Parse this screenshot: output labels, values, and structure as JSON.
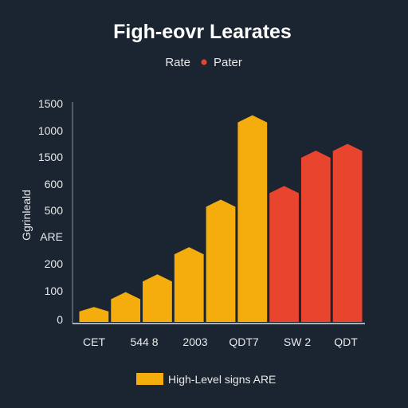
{
  "chart_data": {
    "type": "bar",
    "title": "Figh-eovr Learates",
    "ylabel": "Ggrinleald",
    "xlabel": "",
    "legend": {
      "top": [
        {
          "label": "Rate",
          "color": ""
        },
        {
          "label": "Pater",
          "color": "#e8442e"
        }
      ],
      "bottom": {
        "label": "High-Level signs ARE",
        "color": "#f5ad0e"
      }
    },
    "y_tick_labels": [
      "0",
      "100",
      "200",
      "ARE",
      "500",
      "600",
      "1500",
      "1000",
      "1500"
    ],
    "x_tick_labels": [
      "CET",
      "544 8",
      "2003",
      "QDT7",
      "SW 2",
      "QDT"
    ],
    "ylim": [
      0,
      8
    ],
    "bars": [
      {
        "value": 0.55,
        "series": "yellow"
      },
      {
        "value": 1.1,
        "series": "yellow"
      },
      {
        "value": 1.75,
        "series": "yellow"
      },
      {
        "value": 2.75,
        "series": "yellow"
      },
      {
        "value": 4.5,
        "series": "yellow"
      },
      {
        "value": 7.6,
        "series": "yellow"
      },
      {
        "value": 5.0,
        "series": "red"
      },
      {
        "value": 6.3,
        "series": "red"
      },
      {
        "value": 6.55,
        "series": "red"
      }
    ],
    "colors": {
      "yellow": "#f5ad0e",
      "red": "#e8442e"
    }
  }
}
